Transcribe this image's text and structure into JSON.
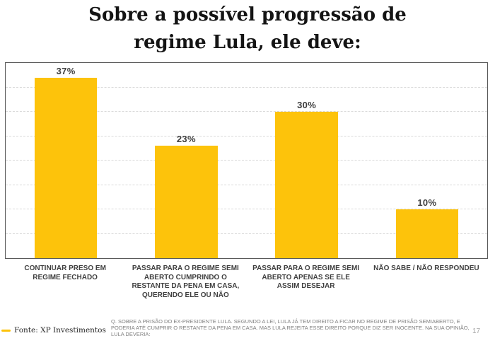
{
  "page": {
    "title_line1": "Sobre a possível progressão de",
    "title_line2": "regime Lula, ele deve:",
    "page_number": "17"
  },
  "chart_data": {
    "type": "bar",
    "title": "Sobre a possível progressão de regime Lula, ele deve:",
    "categories": [
      "CONTINUAR PRESO EM REGIME FECHADO",
      "PASSAR PARA O REGIME SEMI ABERTO CUMPRINDO O RESTANTE DA PENA EM CASA, QUERENDO ELE OU NÃO",
      "PASSAR PARA O REGIME SEMI ABERTO APENAS SE ELE ASSIM DESEJAR",
      "NÃO SABE / NÃO RESPONDEU"
    ],
    "values": [
      37,
      23,
      30,
      10
    ],
    "value_labels": [
      "37%",
      "23%",
      "30%",
      "10%"
    ],
    "xlabel": "",
    "ylabel": "",
    "ylim": [
      0,
      40
    ],
    "grid_step": 5,
    "grid": "horizontal-dashed",
    "bar_color": "#FDC30B",
    "gridline_color": "#d9d9d9",
    "plot_border_color": "#595959",
    "legend_position": "bottom-left"
  },
  "footer": {
    "source_label": "Fonte: XP Investimentos",
    "source_swatch_color": "#FDC30B",
    "question_text": "Q. SOBRE A PRISÃO DO EX-PRESIDENTE LULA. SEGUNDO A LEI, LULA JÁ TEM DIREITO A FICAR NO REGIME DE PRISÃO SEMIABERTO, E PODERIA ATÉ CUMPRIR O RESTANTE DA PENA EM CASA. MAS LULA REJEITA ESSE DIREITO PORQUE DIZ SER INOCENTE. NA SUA OPINIÃO, LULA DEVERIA:"
  }
}
